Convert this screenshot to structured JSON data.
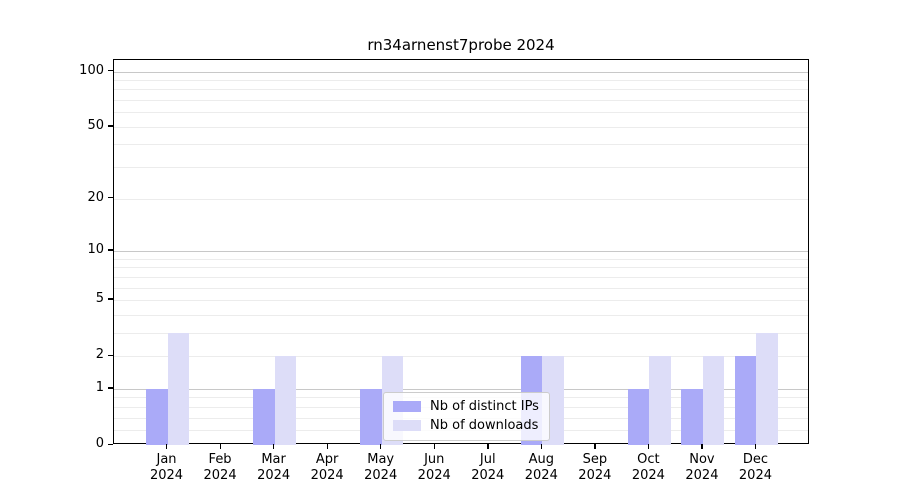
{
  "figure": {
    "background": "#ffffff"
  },
  "chart_data": {
    "type": "bar",
    "title": "rn34arnenst7probe 2024",
    "x_tick_year": "2024",
    "categories": [
      "Jan",
      "Feb",
      "Mar",
      "Apr",
      "May",
      "Jun",
      "Jul",
      "Aug",
      "Sep",
      "Oct",
      "Nov",
      "Dec"
    ],
    "series": [
      {
        "name": "Nb of distinct IPs",
        "color": "#aaaaf8",
        "values": [
          1,
          0,
          1,
          0,
          1,
          0,
          0,
          2,
          0,
          1,
          1,
          2
        ]
      },
      {
        "name": "Nb of downloads",
        "color": "#ddddf8",
        "values": [
          3,
          0,
          2,
          0,
          2,
          0,
          0,
          2,
          0,
          2,
          2,
          3
        ]
      }
    ],
    "y_axis": {
      "scale": "log1p",
      "ticks": [
        0,
        1,
        2,
        5,
        10,
        20,
        50,
        100
      ],
      "max": 114
    },
    "grid": {
      "major": [
        1,
        10,
        100
      ],
      "minor": [
        0.2,
        0.4,
        0.6,
        0.8,
        2,
        3,
        4,
        5,
        6,
        7,
        8,
        9,
        20,
        30,
        40,
        50,
        60,
        70,
        80,
        90
      ],
      "major_color": "#c8c8c8",
      "minor_color": "#ececec"
    },
    "legend": {
      "position": "lower center"
    }
  }
}
